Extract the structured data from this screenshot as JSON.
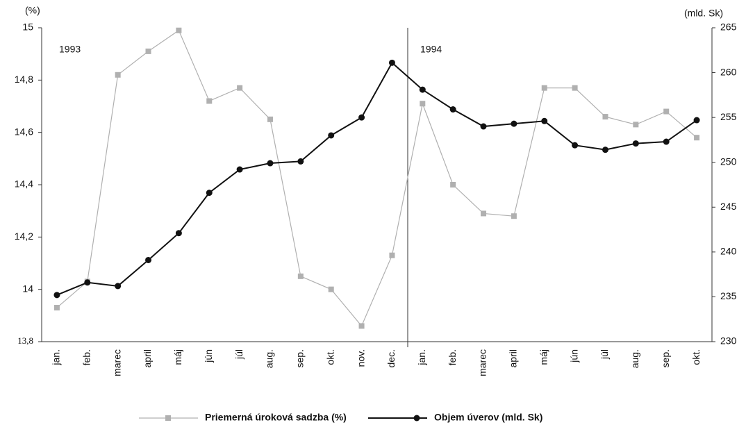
{
  "chart_data": {
    "type": "line",
    "categories": [
      "jan.",
      "feb.",
      "marec",
      "april",
      "máj",
      "jún",
      "júl",
      "aug.",
      "sep.",
      "okt.",
      "nov.",
      "dec.",
      "jan.",
      "feb.",
      "marec",
      "april",
      "máj",
      "jún",
      "júl",
      "aug.",
      "sep.",
      "okt."
    ],
    "series": [
      {
        "name": "Priemerná úroková sadzba (%)",
        "color": "#b0b0b0",
        "marker": "square",
        "values": [
          13.93,
          14.03,
          14.82,
          14.91,
          14.99,
          14.72,
          14.77,
          14.65,
          14.05,
          14.0,
          13.86,
          14.13,
          14.71,
          14.4,
          14.29,
          14.28,
          14.77,
          14.77,
          14.66,
          14.63,
          14.68,
          14.58
        ]
      },
      {
        "name": "Objem úverov (mld. Sk)",
        "color": "#111111",
        "marker": "circle",
        "axis": "y2",
        "values": [
          235.2,
          236.6,
          236.2,
          239.1,
          242.1,
          246.6,
          249.2,
          249.9,
          250.1,
          253.0,
          255.0,
          261.1,
          258.1,
          255.9,
          254.0,
          254.3,
          254.6,
          251.9,
          251.4,
          252.1,
          252.3,
          254.7
        ]
      }
    ],
    "ylim": [
      13.8,
      15
    ],
    "yticks": [
      {
        "value": 13.8,
        "label": "13,8"
      },
      14,
      {
        "value": 14.2,
        "label": "14,2"
      },
      {
        "value": 14.4,
        "label": "14,4"
      },
      {
        "value": 14.6,
        "label": "14,6"
      },
      {
        "value": 14.8,
        "label": "14,8"
      },
      15
    ],
    "y2lim": [
      230,
      265
    ],
    "y2ticks": [
      230,
      235,
      240,
      245,
      250,
      255,
      260,
      265
    ],
    "y_label": "(%)",
    "y2_label": "(mld. Sk)",
    "annotations": [
      "1993",
      "1994"
    ],
    "legend": "bottom"
  }
}
